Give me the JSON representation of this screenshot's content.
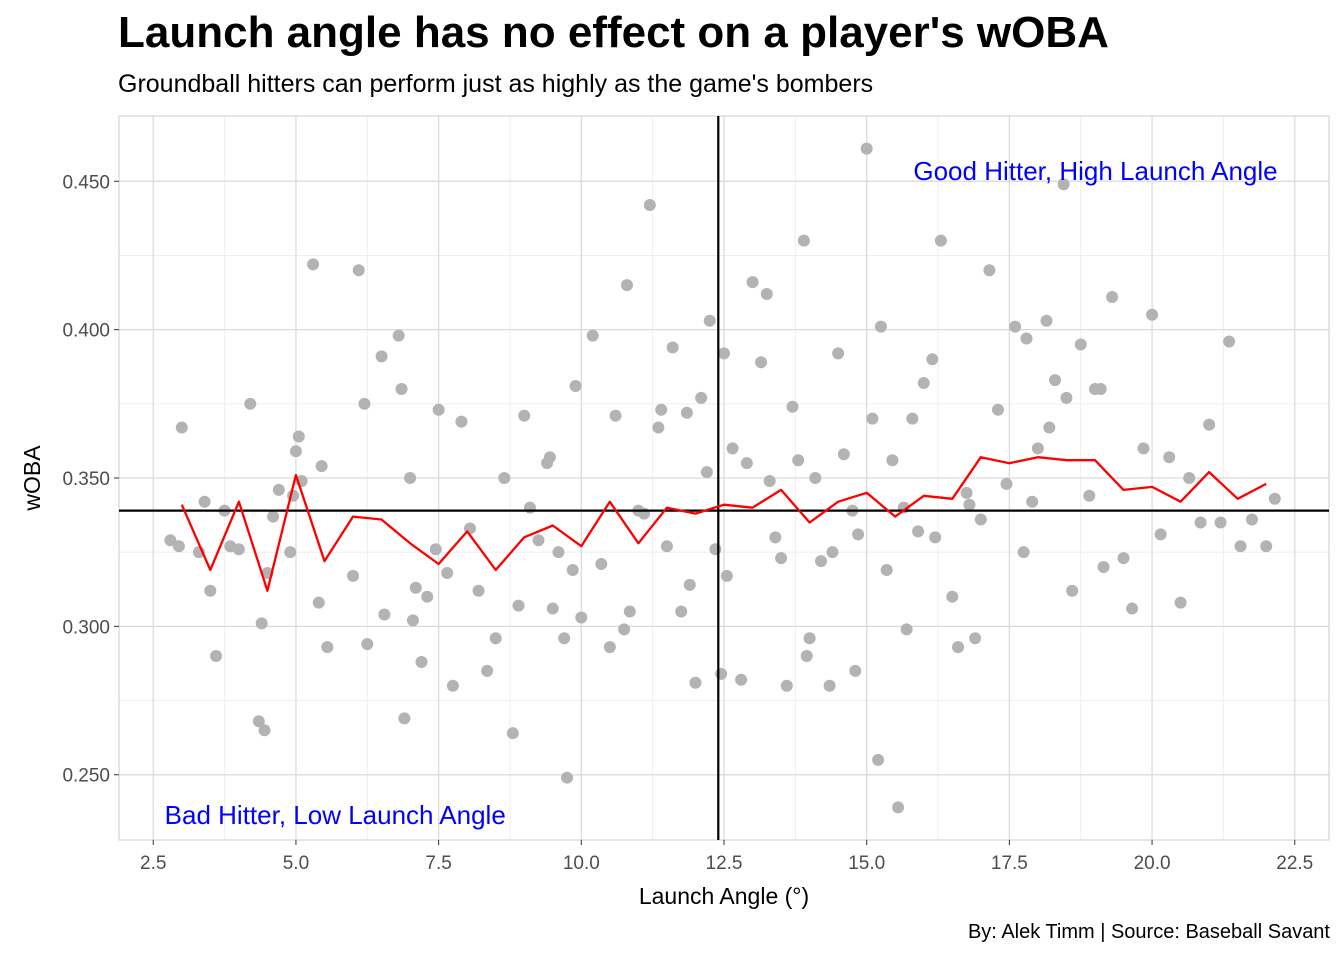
{
  "title": "Launch angle has no effect on a player's wOBA",
  "subtitle": "Groundball hitters can perform just as highly as the game's bombers",
  "caption": "By: Alek Timm  |  Source: Baseball Savant",
  "colors": {
    "points": "#b3b3b3",
    "trend_line": "#ff0000",
    "reference_lines": "#000000",
    "annotation": "#0000ff",
    "grid": "#d9d9d9",
    "panel_border": "#cccccc"
  },
  "chart_data": {
    "type": "scatter",
    "title": "Launch angle has no effect on a player's wOBA",
    "subtitle": "Groundball hitters can perform just as highly as the game's bombers",
    "xlabel": "Launch Angle (°)",
    "ylabel": "wOBA",
    "xlim": [
      1.9,
      23.1
    ],
    "ylim": [
      0.228,
      0.472
    ],
    "x_ticks": [
      2.5,
      5.0,
      7.5,
      10.0,
      12.5,
      15.0,
      17.5,
      20.0,
      22.5
    ],
    "x_tick_labels": [
      "2.5",
      "5.0",
      "7.5",
      "10.0",
      "12.5",
      "15.0",
      "17.5",
      "20.0",
      "22.5"
    ],
    "y_ticks": [
      0.25,
      0.3,
      0.35,
      0.4,
      0.45
    ],
    "y_tick_labels": [
      "0.250",
      "0.300",
      "0.350",
      "0.400",
      "0.450"
    ],
    "grid": true,
    "reference_lines": {
      "vertical_x": 12.4,
      "horizontal_y": 0.339
    },
    "annotations": [
      {
        "text": "Good Hitter, High Launch Angle",
        "x": 22.2,
        "y": 0.4535,
        "anchor": "end"
      },
      {
        "text": "Bad Hitter, Low Launch Angle",
        "x": 2.7,
        "y": 0.2365,
        "anchor": "start"
      }
    ],
    "trend_line": {
      "x": [
        3.0,
        3.5,
        4.0,
        4.5,
        5.0,
        5.5,
        6.0,
        6.5,
        7.0,
        7.5,
        8.0,
        8.5,
        9.0,
        9.5,
        10.0,
        10.5,
        11.0,
        11.5,
        12.0,
        12.5,
        13.0,
        13.5,
        14.0,
        14.5,
        15.0,
        15.5,
        16.0,
        16.5,
        17.0,
        17.5,
        18.0,
        18.5,
        19.0,
        19.5,
        20.0,
        20.5,
        21.0,
        21.5,
        22.0
      ],
      "y": [
        0.341,
        0.319,
        0.342,
        0.312,
        0.351,
        0.322,
        0.337,
        0.336,
        0.328,
        0.321,
        0.332,
        0.319,
        0.33,
        0.334,
        0.327,
        0.342,
        0.328,
        0.34,
        0.338,
        0.341,
        0.34,
        0.346,
        0.335,
        0.342,
        0.345,
        0.337,
        0.344,
        0.343,
        0.357,
        0.355,
        0.357,
        0.356,
        0.356,
        0.346,
        0.347,
        0.342,
        0.352,
        0.343,
        0.348
      ]
    },
    "points": {
      "x": [
        2.8,
        2.95,
        3.0,
        3.3,
        3.4,
        3.5,
        3.6,
        3.75,
        3.85,
        4.0,
        4.2,
        4.35,
        4.4,
        4.45,
        4.6,
        4.5,
        4.7,
        4.9,
        5.0,
        5.05,
        5.1,
        4.95,
        5.3,
        5.45,
        5.55,
        5.4,
        6.1,
        6.2,
        6.25,
        6.5,
        6.55,
        6.8,
        6.85,
        6.9,
        7.0,
        7.05,
        7.2,
        7.3,
        7.45,
        7.5,
        7.65,
        7.75,
        7.9,
        8.05,
        8.2,
        8.35,
        8.5,
        8.65,
        8.8,
        9.0,
        9.1,
        9.25,
        9.4,
        9.5,
        9.6,
        9.7,
        9.75,
        9.85,
        9.9,
        10.0,
        10.2,
        10.35,
        10.5,
        10.6,
        10.75,
        10.85,
        11.0,
        11.2,
        11.35,
        11.5,
        11.6,
        11.75,
        11.85,
        11.9,
        12.0,
        12.1,
        12.2,
        12.25,
        12.35,
        12.5,
        12.55,
        12.65,
        12.8,
        12.9,
        13.0,
        13.15,
        13.25,
        13.4,
        13.5,
        13.6,
        13.7,
        13.8,
        13.9,
        14.0,
        14.1,
        14.2,
        14.35,
        14.5,
        14.6,
        14.75,
        14.85,
        15.0,
        15.1,
        15.2,
        15.35,
        15.45,
        15.55,
        15.65,
        15.8,
        15.9,
        16.0,
        16.15,
        16.3,
        16.5,
        16.6,
        16.75,
        16.9,
        17.0,
        17.15,
        17.3,
        17.45,
        17.6,
        17.75,
        17.9,
        18.0,
        18.15,
        18.3,
        18.45,
        18.6,
        18.75,
        18.9,
        19.0,
        19.15,
        19.3,
        19.5,
        19.65,
        19.85,
        20.0,
        20.15,
        20.3,
        20.5,
        20.65,
        20.85,
        21.0,
        21.2,
        21.35,
        21.55,
        21.75,
        22.0,
        22.15,
        10.8,
        11.4,
        13.3,
        14.8,
        15.7,
        16.2,
        17.8,
        18.2,
        8.9,
        9.45,
        12.45,
        13.95,
        16.8,
        19.1,
        7.1,
        6.0,
        11.1,
        15.25,
        14.4,
        18.5
      ],
      "y": [
        0.329,
        0.327,
        0.367,
        0.325,
        0.342,
        0.312,
        0.29,
        0.339,
        0.327,
        0.326,
        0.375,
        0.268,
        0.301,
        0.265,
        0.337,
        0.318,
        0.346,
        0.325,
        0.359,
        0.364,
        0.349,
        0.344,
        0.422,
        0.354,
        0.293,
        0.308,
        0.42,
        0.375,
        0.294,
        0.391,
        0.304,
        0.398,
        0.38,
        0.269,
        0.35,
        0.302,
        0.288,
        0.31,
        0.326,
        0.373,
        0.318,
        0.28,
        0.369,
        0.333,
        0.312,
        0.285,
        0.296,
        0.35,
        0.264,
        0.371,
        0.34,
        0.329,
        0.355,
        0.306,
        0.325,
        0.296,
        0.249,
        0.319,
        0.381,
        0.303,
        0.398,
        0.321,
        0.293,
        0.371,
        0.299,
        0.305,
        0.339,
        0.442,
        0.367,
        0.327,
        0.394,
        0.305,
        0.372,
        0.314,
        0.281,
        0.377,
        0.352,
        0.403,
        0.326,
        0.392,
        0.317,
        0.36,
        0.282,
        0.355,
        0.416,
        0.389,
        0.412,
        0.33,
        0.323,
        0.28,
        0.374,
        0.356,
        0.43,
        0.296,
        0.35,
        0.322,
        0.28,
        0.392,
        0.358,
        0.339,
        0.331,
        0.461,
        0.37,
        0.255,
        0.319,
        0.356,
        0.239,
        0.34,
        0.37,
        0.332,
        0.382,
        0.39,
        0.43,
        0.31,
        0.293,
        0.345,
        0.296,
        0.336,
        0.42,
        0.373,
        0.348,
        0.401,
        0.325,
        0.342,
        0.36,
        0.403,
        0.383,
        0.449,
        0.312,
        0.395,
        0.344,
        0.38,
        0.32,
        0.411,
        0.323,
        0.306,
        0.36,
        0.405,
        0.331,
        0.357,
        0.308,
        0.35,
        0.335,
        0.368,
        0.335,
        0.396,
        0.327,
        0.336,
        0.327,
        0.343,
        0.415,
        0.373,
        0.349,
        0.285,
        0.299,
        0.33,
        0.397,
        0.367,
        0.307,
        0.357,
        0.284,
        0.29,
        0.341,
        0.38,
        0.313,
        0.317,
        0.338,
        0.401,
        0.325,
        0.377
      ]
    }
  }
}
